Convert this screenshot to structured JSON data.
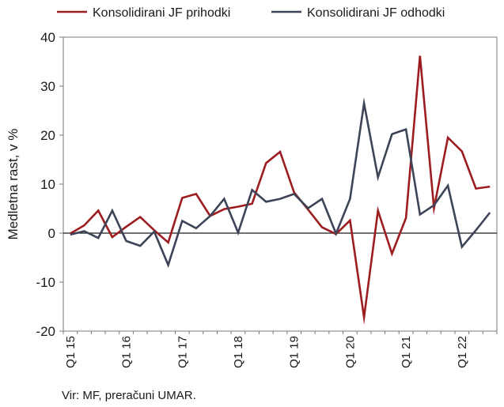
{
  "chart_data": {
    "type": "line",
    "ylabel": "Medletna rast, v %",
    "ylim": [
      -20,
      40
    ],
    "yticks": [
      -20,
      -10,
      0,
      10,
      20,
      30,
      40
    ],
    "legend_position": "top",
    "grid": false,
    "x": [
      "Q1 15",
      "Q2 15",
      "Q3 15",
      "Q4 15",
      "Q1 16",
      "Q2 16",
      "Q3 16",
      "Q4 16",
      "Q1 17",
      "Q2 17",
      "Q3 17",
      "Q4 17",
      "Q1 18",
      "Q2 18",
      "Q3 18",
      "Q4 18",
      "Q1 19",
      "Q2 19",
      "Q3 19",
      "Q4 19",
      "Q1 20",
      "Q2 20",
      "Q3 20",
      "Q4 20",
      "Q1 21",
      "Q2 21",
      "Q3 21",
      "Q4 21",
      "Q1 22",
      "Q2 22",
      "Q3 22"
    ],
    "xtick_labels": [
      {
        "index": 0,
        "label": "Q1 15"
      },
      {
        "index": 4,
        "label": "Q1 16"
      },
      {
        "index": 8,
        "label": "Q1 17"
      },
      {
        "index": 12,
        "label": "Q1 18"
      },
      {
        "index": 16,
        "label": "Q1 19"
      },
      {
        "index": 20,
        "label": "Q1 20"
      },
      {
        "index": 24,
        "label": "Q1 21"
      },
      {
        "index": 28,
        "label": "Q1 22"
      }
    ],
    "series": [
      {
        "name": "Konsolidirani JF prihodki",
        "color": "#9c1c20",
        "values": [
          -0.1,
          1.6,
          4.6,
          -0.8,
          1.3,
          3.3,
          0.6,
          -1.9,
          7.2,
          8.0,
          3.5,
          4.9,
          5.4,
          6.0,
          14.3,
          16.6,
          8.3,
          4.8,
          1.2,
          -0.2,
          2.6,
          -17.2,
          4.6,
          -4.2,
          3.1,
          36.2,
          5.1,
          19.5,
          16.7,
          9.1,
          9.5
        ]
      },
      {
        "name": "Konsolidirani JF odhodki",
        "color": "#3d4457",
        "values": [
          -0.3,
          0.4,
          -1.0,
          4.6,
          -1.6,
          -2.6,
          0.3,
          -6.5,
          2.5,
          1.0,
          3.5,
          7.0,
          0.1,
          8.8,
          6.4,
          7.0,
          8.0,
          5.1,
          7.0,
          -0.1,
          7.0,
          26.5,
          11.4,
          20.2,
          21.2,
          3.8,
          5.7,
          9.7,
          -2.8,
          0.6,
          4.2
        ]
      }
    ]
  },
  "source": "Vir: MF, preračuni UMAR."
}
